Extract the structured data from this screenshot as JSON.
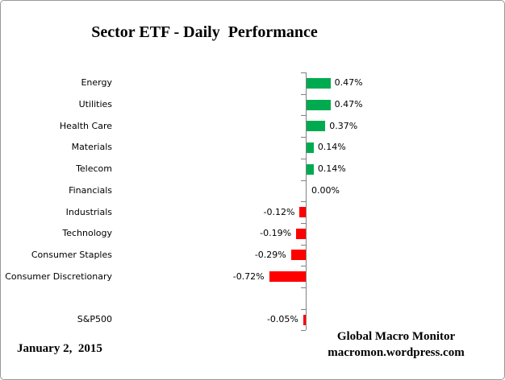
{
  "title": "Sector ETF - Daily  Performance",
  "footer": {
    "date": "January 2,  2015",
    "source_line1": "Global Macro Monitor",
    "source_line2": "macromon.wordpress.com"
  },
  "chart_data": {
    "type": "bar",
    "orientation": "horizontal",
    "title": "Sector ETF - Daily  Performance",
    "categories": [
      "Energy",
      "Utilities",
      "Health Care",
      "Materials",
      "Telecom",
      "Financials",
      "Industrials",
      "Technology",
      "Consumer Staples",
      "Consumer Discretionary",
      "S&P500"
    ],
    "values": [
      0.47,
      0.47,
      0.37,
      0.14,
      0.14,
      0.0,
      -0.12,
      -0.19,
      -0.29,
      -0.72,
      -0.05
    ],
    "value_labels": [
      "0.47%",
      "0.47%",
      "0.37%",
      "0.14%",
      "0.14%",
      "0.00%",
      "-0.12%",
      "-0.19%",
      "-0.29%",
      "-0.72%",
      "-0.05%"
    ],
    "separator_gap_before_last": true,
    "xlim": [
      -0.8,
      0.8
    ],
    "gridlines": false,
    "value_label_position": "outside-end",
    "positive_color": "#00ab50",
    "negative_color": "#ff0000",
    "axis_color": "#808080"
  }
}
